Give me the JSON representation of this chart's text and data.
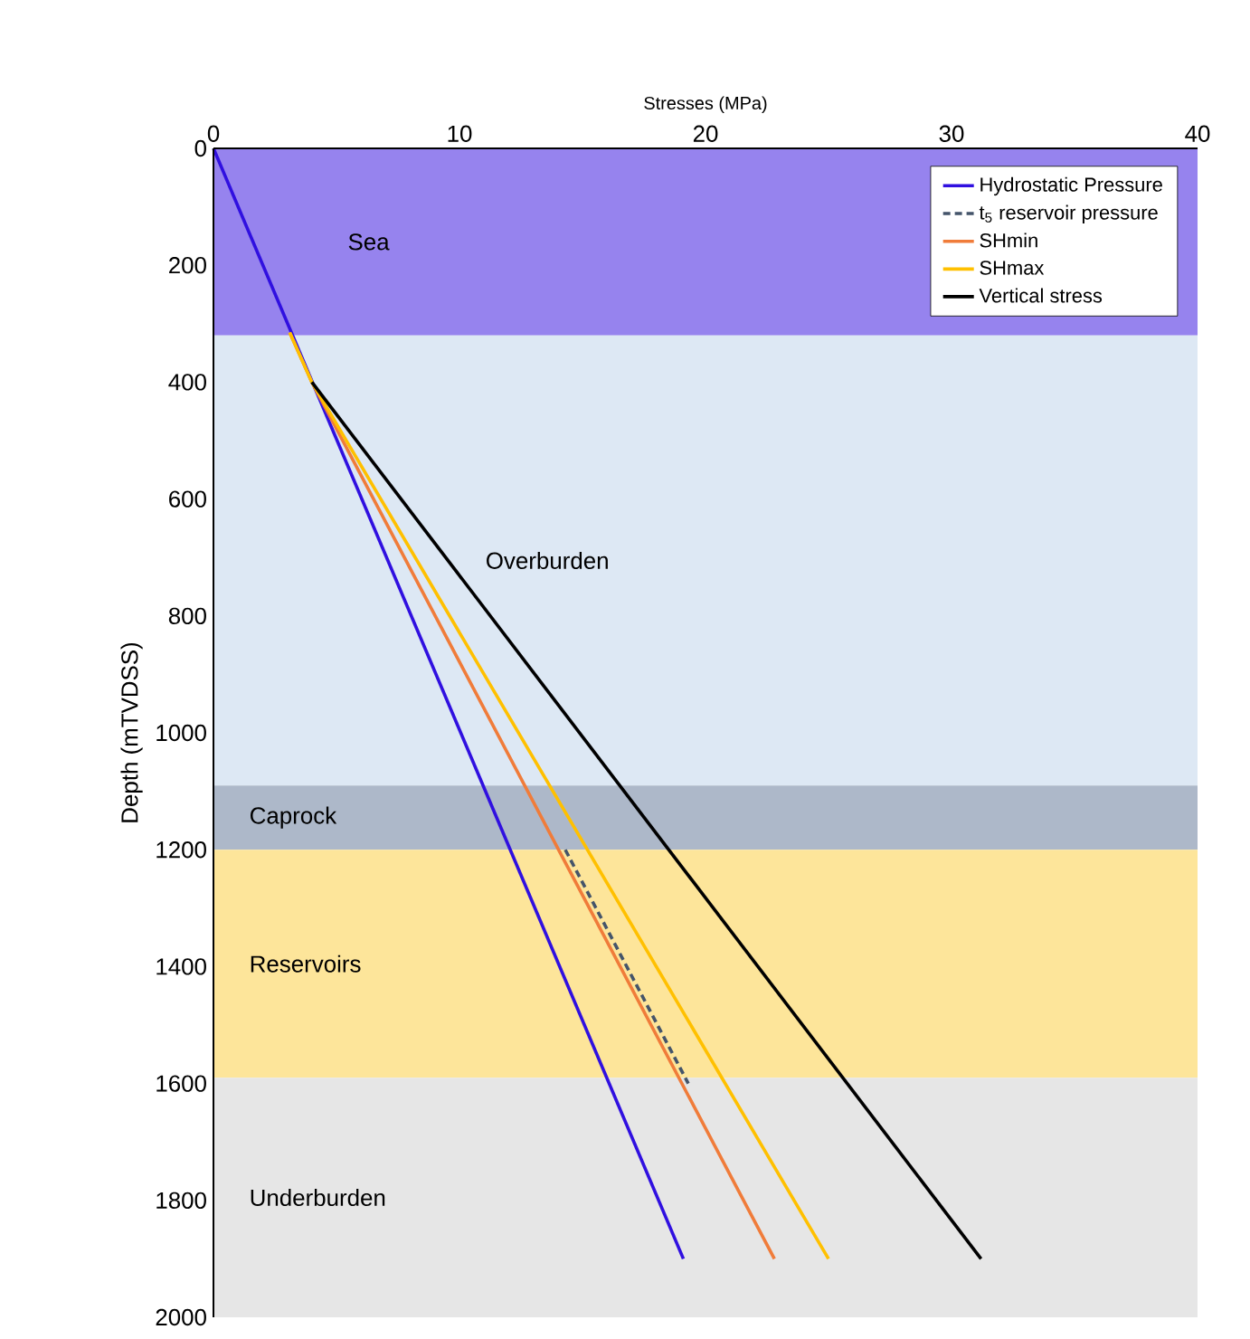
{
  "chart_data": {
    "type": "line",
    "xlabel": "Stresses (MPa)",
    "ylabel": "Depth (mTVDSS)",
    "xlim": [
      0,
      40
    ],
    "xticks": [
      0,
      10,
      20,
      30,
      40
    ],
    "ylim": [
      2000,
      0
    ],
    "yticks": [
      0,
      200,
      400,
      600,
      800,
      1000,
      1200,
      1400,
      1600,
      1800,
      2000
    ],
    "legend": "top right",
    "grid": false,
    "bands": [
      {
        "axis": "y",
        "from": 0,
        "to": 320,
        "label": "Sea",
        "color": "#9683ee"
      },
      {
        "axis": "y",
        "from": 320,
        "to": 1090,
        "label": "Overburden",
        "color": "#dde8f4"
      },
      {
        "axis": "y",
        "from": 1090,
        "to": 1200,
        "label": "Caprock",
        "color": "#adb8c9"
      },
      {
        "axis": "y",
        "from": 1200,
        "to": 1590,
        "label": "Reservoirs",
        "color": "#fde59a"
      },
      {
        "axis": "y",
        "from": 1590,
        "to": 2000,
        "label": "Underburden",
        "color": "#e6e6e6"
      }
    ],
    "series": [
      {
        "name": "Hydrostatic Pressure",
        "color": "#3010e0",
        "x": [
          0,
          19.1
        ],
        "values": [
          0,
          1900
        ]
      },
      {
        "name": "t$_{5}$ reservoir pressure",
        "color": "#44546a",
        "line_style": "dashed",
        "x": [
          14.3,
          19.3
        ],
        "values": [
          1200,
          1600
        ]
      },
      {
        "name": "SHmin",
        "color": "#f07c3a",
        "x": [
          3.1,
          4.0,
          22.8
        ],
        "values": [
          315,
          400,
          1900
        ]
      },
      {
        "name": "SHmax",
        "color": "#ffc000",
        "x": [
          3.1,
          4.0,
          25.0
        ],
        "values": [
          315,
          400,
          1900
        ]
      },
      {
        "name": "Vertical stress",
        "color": "#000000",
        "x": [
          4.0,
          31.2
        ],
        "values": [
          400,
          1900
        ]
      }
    ]
  }
}
